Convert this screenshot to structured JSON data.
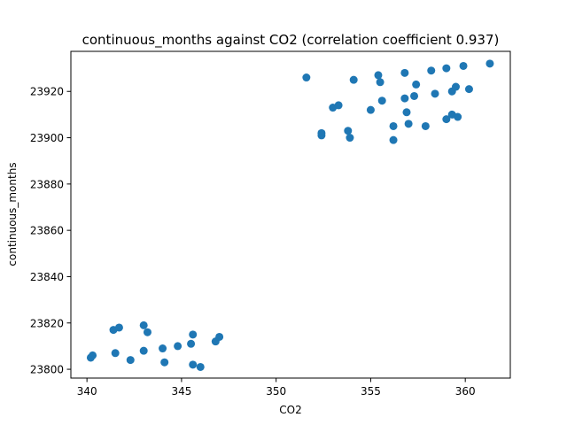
{
  "chart_data": {
    "type": "scatter",
    "title": "continuous_months against CO2 (correlation coefficient 0.937)",
    "xlabel": "CO2",
    "ylabel": "continuous_months",
    "xlim": [
      339.15,
      362.38
    ],
    "ylim": [
      23796.2,
      23937.3
    ],
    "xticks": [
      340,
      345,
      350,
      355,
      360
    ],
    "yticks": [
      23800,
      23820,
      23840,
      23860,
      23880,
      23900,
      23920
    ],
    "grid": false,
    "marker_color": "#1f77b4",
    "points": [
      {
        "x": 340.2,
        "y": 23805
      },
      {
        "x": 340.3,
        "y": 23806
      },
      {
        "x": 341.4,
        "y": 23817
      },
      {
        "x": 341.5,
        "y": 23807
      },
      {
        "x": 341.7,
        "y": 23818
      },
      {
        "x": 342.3,
        "y": 23804
      },
      {
        "x": 343.0,
        "y": 23819
      },
      {
        "x": 343.0,
        "y": 23808
      },
      {
        "x": 343.2,
        "y": 23816
      },
      {
        "x": 344.0,
        "y": 23809
      },
      {
        "x": 344.1,
        "y": 23803
      },
      {
        "x": 344.8,
        "y": 23810
      },
      {
        "x": 345.5,
        "y": 23811
      },
      {
        "x": 345.6,
        "y": 23815
      },
      {
        "x": 345.6,
        "y": 23802
      },
      {
        "x": 346.0,
        "y": 23801
      },
      {
        "x": 346.8,
        "y": 23812
      },
      {
        "x": 347.0,
        "y": 23814
      },
      {
        "x": 351.6,
        "y": 23926
      },
      {
        "x": 352.4,
        "y": 23901
      },
      {
        "x": 352.4,
        "y": 23902
      },
      {
        "x": 353.0,
        "y": 23913
      },
      {
        "x": 353.3,
        "y": 23914
      },
      {
        "x": 353.8,
        "y": 23903
      },
      {
        "x": 353.9,
        "y": 23900
      },
      {
        "x": 354.1,
        "y": 23925
      },
      {
        "x": 355.0,
        "y": 23912
      },
      {
        "x": 355.4,
        "y": 23927
      },
      {
        "x": 355.5,
        "y": 23924
      },
      {
        "x": 355.6,
        "y": 23916
      },
      {
        "x": 356.2,
        "y": 23899
      },
      {
        "x": 356.2,
        "y": 23905
      },
      {
        "x": 356.8,
        "y": 23928
      },
      {
        "x": 356.8,
        "y": 23917
      },
      {
        "x": 356.9,
        "y": 23911
      },
      {
        "x": 357.0,
        "y": 23906
      },
      {
        "x": 357.3,
        "y": 23918
      },
      {
        "x": 357.4,
        "y": 23923
      },
      {
        "x": 357.9,
        "y": 23905
      },
      {
        "x": 358.2,
        "y": 23929
      },
      {
        "x": 358.4,
        "y": 23919
      },
      {
        "x": 359.0,
        "y": 23930
      },
      {
        "x": 359.0,
        "y": 23908
      },
      {
        "x": 359.3,
        "y": 23920
      },
      {
        "x": 359.3,
        "y": 23910
      },
      {
        "x": 359.5,
        "y": 23922
      },
      {
        "x": 359.6,
        "y": 23909
      },
      {
        "x": 359.9,
        "y": 23931
      },
      {
        "x": 360.2,
        "y": 23921
      },
      {
        "x": 361.3,
        "y": 23932
      }
    ]
  }
}
